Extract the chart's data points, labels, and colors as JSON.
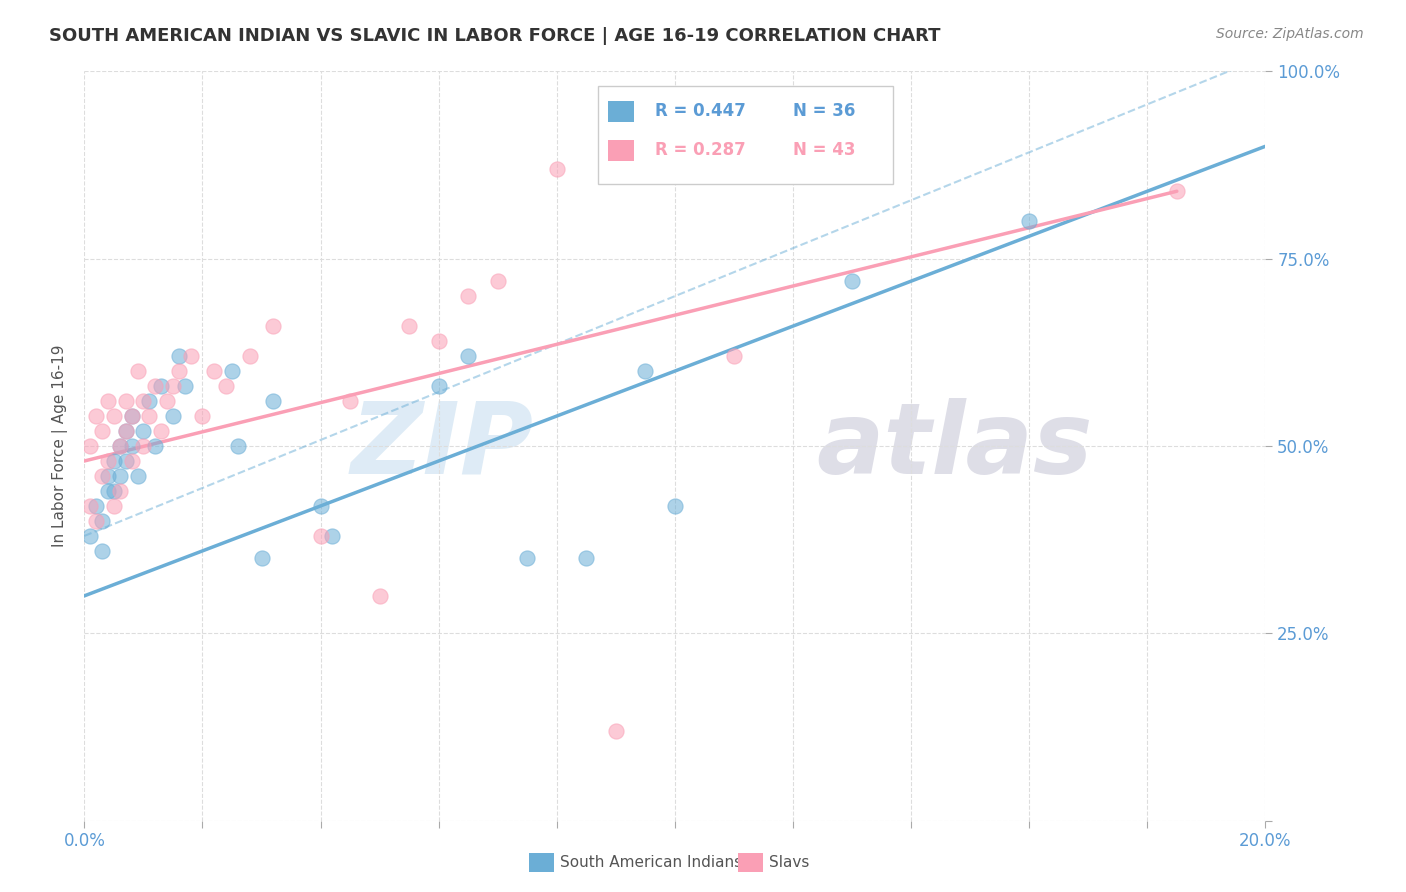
{
  "title": "SOUTH AMERICAN INDIAN VS SLAVIC IN LABOR FORCE | AGE 16-19 CORRELATION CHART",
  "source": "Source: ZipAtlas.com",
  "ylabel": "In Labor Force | Age 16-19",
  "xlim": [
    0.0,
    0.2
  ],
  "ylim": [
    0.0,
    1.0
  ],
  "xticks": [
    0.0,
    0.02,
    0.04,
    0.06,
    0.08,
    0.1,
    0.12,
    0.14,
    0.16,
    0.18,
    0.2
  ],
  "xticklabels": [
    "0.0%",
    "",
    "",
    "",
    "",
    "",
    "",
    "",
    "",
    "",
    "20.0%"
  ],
  "yticks": [
    0.0,
    0.25,
    0.5,
    0.75,
    1.0
  ],
  "yticklabels": [
    "",
    "25.0%",
    "50.0%",
    "75.0%",
    "100.0%"
  ],
  "legend_r1": "R = 0.447",
  "legend_n1": "N = 36",
  "legend_r2": "R = 0.287",
  "legend_n2": "N = 43",
  "blue_color": "#6BAED6",
  "pink_color": "#FA9FB5",
  "axis_label_color": "#5B9BD5",
  "title_color": "#333333",
  "source_color": "#888888",
  "watermark_zip_color": "#C8DFF0",
  "watermark_atlas_color": "#C8C8D8",
  "blue_scatter_x": [
    0.001,
    0.002,
    0.003,
    0.003,
    0.004,
    0.004,
    0.005,
    0.005,
    0.006,
    0.006,
    0.007,
    0.007,
    0.008,
    0.008,
    0.009,
    0.01,
    0.011,
    0.012,
    0.013,
    0.015,
    0.016,
    0.017,
    0.025,
    0.026,
    0.03,
    0.032,
    0.04,
    0.042,
    0.06,
    0.065,
    0.075,
    0.085,
    0.095,
    0.1,
    0.13,
    0.16
  ],
  "blue_scatter_y": [
    0.38,
    0.42,
    0.36,
    0.4,
    0.46,
    0.44,
    0.48,
    0.44,
    0.5,
    0.46,
    0.52,
    0.48,
    0.5,
    0.54,
    0.46,
    0.52,
    0.56,
    0.5,
    0.58,
    0.54,
    0.62,
    0.58,
    0.6,
    0.5,
    0.35,
    0.56,
    0.42,
    0.38,
    0.58,
    0.62,
    0.35,
    0.35,
    0.6,
    0.42,
    0.72,
    0.8
  ],
  "pink_scatter_x": [
    0.001,
    0.001,
    0.002,
    0.002,
    0.003,
    0.003,
    0.004,
    0.004,
    0.005,
    0.005,
    0.006,
    0.006,
    0.007,
    0.007,
    0.008,
    0.008,
    0.009,
    0.01,
    0.01,
    0.011,
    0.012,
    0.013,
    0.014,
    0.015,
    0.016,
    0.018,
    0.02,
    0.022,
    0.024,
    0.028,
    0.032,
    0.04,
    0.045,
    0.05,
    0.055,
    0.06,
    0.065,
    0.07,
    0.08,
    0.09,
    0.1,
    0.11,
    0.185
  ],
  "pink_scatter_y": [
    0.42,
    0.5,
    0.4,
    0.54,
    0.46,
    0.52,
    0.48,
    0.56,
    0.42,
    0.54,
    0.5,
    0.44,
    0.52,
    0.56,
    0.48,
    0.54,
    0.6,
    0.5,
    0.56,
    0.54,
    0.58,
    0.52,
    0.56,
    0.58,
    0.6,
    0.62,
    0.54,
    0.6,
    0.58,
    0.62,
    0.66,
    0.38,
    0.56,
    0.3,
    0.66,
    0.64,
    0.7,
    0.72,
    0.87,
    0.12,
    0.94,
    0.62,
    0.84
  ],
  "blue_line_x": [
    0.0,
    0.2
  ],
  "blue_line_y": [
    0.3,
    0.9
  ],
  "pink_line_x": [
    0.0,
    0.185
  ],
  "pink_line_y": [
    0.48,
    0.84
  ],
  "ref_line_x": [
    0.0,
    0.2
  ],
  "ref_line_y": [
    0.38,
    1.02
  ],
  "background_color": "#FFFFFF",
  "grid_color": "#DDDDDD"
}
